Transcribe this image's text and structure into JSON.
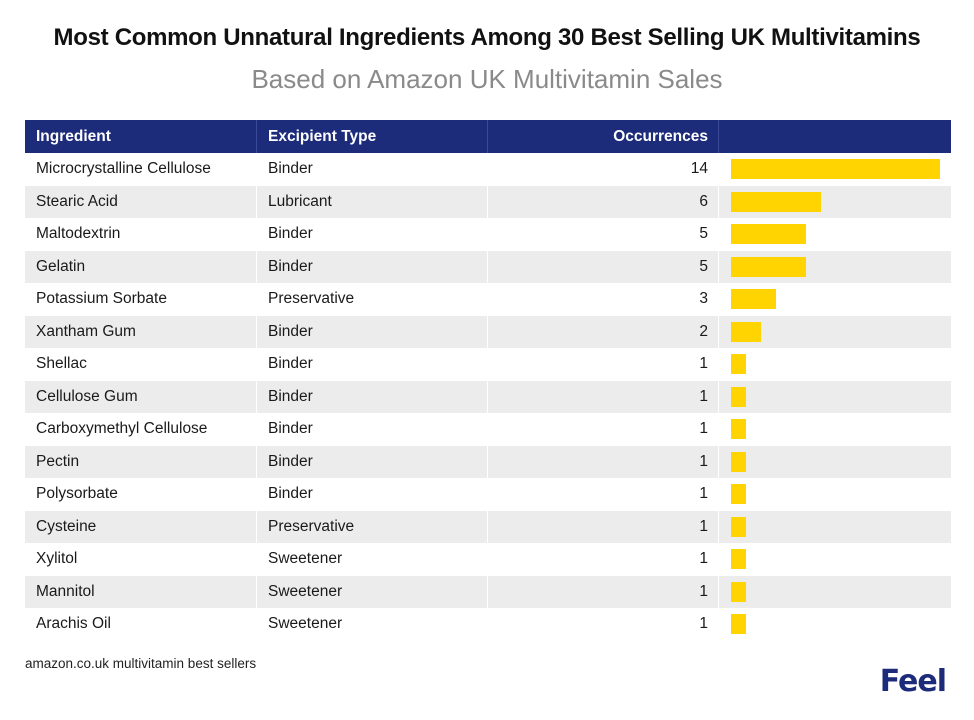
{
  "title": "Most Common Unnatural Ingredients Among 30 Best Selling UK Multivitamins",
  "subtitle": "Based on Amazon UK Multivitamin Sales",
  "columns": {
    "ingredient": "Ingredient",
    "type": "Excipient Type",
    "occurrences": "Occurrences"
  },
  "source": "amazon.co.uk multivitamin best sellers",
  "logo": "Feel",
  "colors": {
    "header_bg": "#1c2b7a",
    "bar": "#ffd400",
    "stripe": "#ececec",
    "logo": "#1c2b7a"
  },
  "chart_data": {
    "type": "table",
    "title": "Most Common Unnatural Ingredients Among 30 Best Selling UK Multivitamins",
    "subtitle": "Based on Amazon UK Multivitamin Sales",
    "max_value": 14,
    "rows": [
      {
        "ingredient": "Microcrystalline Cellulose",
        "type": "Binder",
        "occurrences": 14
      },
      {
        "ingredient": "Stearic Acid",
        "type": "Lubricant",
        "occurrences": 6
      },
      {
        "ingredient": "Maltodextrin",
        "type": "Binder",
        "occurrences": 5
      },
      {
        "ingredient": "Gelatin",
        "type": "Binder",
        "occurrences": 5
      },
      {
        "ingredient": "Potassium Sorbate",
        "type": "Preservative",
        "occurrences": 3
      },
      {
        "ingredient": "Xantham Gum",
        "type": "Binder",
        "occurrences": 2
      },
      {
        "ingredient": "Shellac",
        "type": "Binder",
        "occurrences": 1
      },
      {
        "ingredient": "Cellulose Gum",
        "type": "Binder",
        "occurrences": 1
      },
      {
        "ingredient": "Carboxymethyl Cellulose",
        "type": "Binder",
        "occurrences": 1
      },
      {
        "ingredient": "Pectin",
        "type": "Binder",
        "occurrences": 1
      },
      {
        "ingredient": "Polysorbate",
        "type": "Binder",
        "occurrences": 1
      },
      {
        "ingredient": "Cysteine",
        "type": "Preservative",
        "occurrences": 1
      },
      {
        "ingredient": "Xylitol",
        "type": "Sweetener",
        "occurrences": 1
      },
      {
        "ingredient": "Mannitol",
        "type": "Sweetener",
        "occurrences": 1
      },
      {
        "ingredient": "Arachis Oil",
        "type": "Sweetener",
        "occurrences": 1
      }
    ]
  }
}
